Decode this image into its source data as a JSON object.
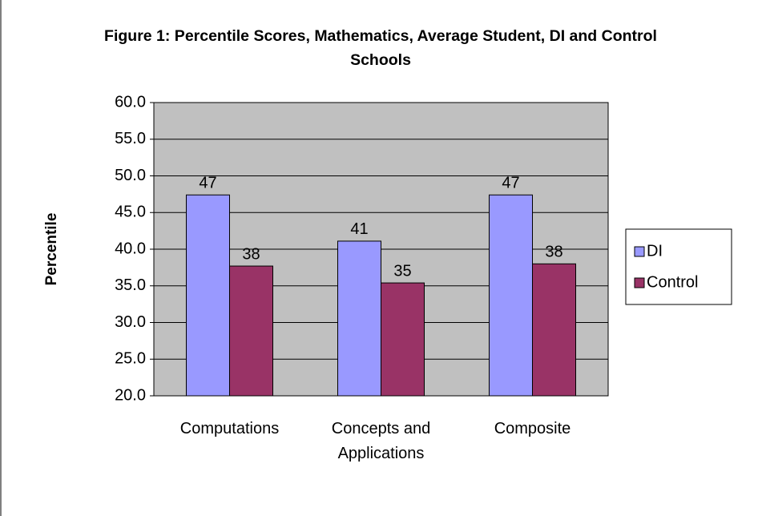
{
  "chart_data": {
    "type": "bar",
    "title": "Figure 1: Percentile Scores, Mathematics, Average Student, DI and Control Schools",
    "y_label": "Percentile",
    "categories": [
      "Computations",
      "Concepts and Applications",
      "Composite"
    ],
    "series": [
      {
        "name": "DI",
        "color": "#9999ff",
        "values": [
          47.4,
          41.1,
          47.4
        ],
        "value_labels": [
          "47",
          "41",
          "47"
        ]
      },
      {
        "name": "Control",
        "color": "#993366",
        "values": [
          37.7,
          35.4,
          38.0
        ],
        "value_labels": [
          "38",
          "35",
          "38"
        ]
      }
    ],
    "ylim": [
      20,
      60
    ],
    "yticks": [
      {
        "value": 20,
        "label": "20.0"
      },
      {
        "value": 25,
        "label": "25.0"
      },
      {
        "value": 30,
        "label": "30.0"
      },
      {
        "value": 35,
        "label": "35.0"
      },
      {
        "value": 40,
        "label": "40.0"
      },
      {
        "value": 45,
        "label": "45.0"
      },
      {
        "value": 50,
        "label": "50.0"
      },
      {
        "value": 55,
        "label": "55.0"
      },
      {
        "value": 60,
        "label": "60.0"
      }
    ],
    "grid": true,
    "legend": "right"
  }
}
